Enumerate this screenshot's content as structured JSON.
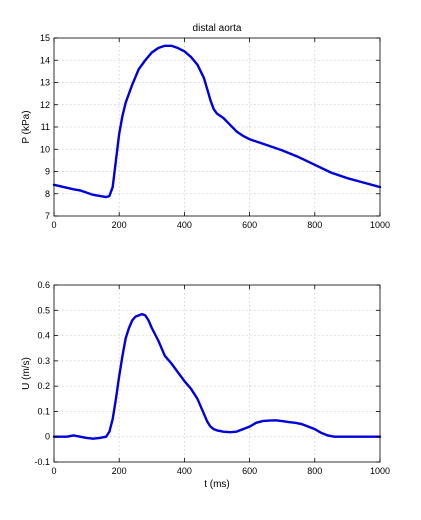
{
  "chart_data": [
    {
      "type": "line",
      "title": "distal aorta",
      "xlabel": "",
      "ylabel": "P  (kPa)",
      "xlim": [
        0,
        1000
      ],
      "ylim": [
        7,
        15
      ],
      "xticks": [
        0,
        200,
        400,
        600,
        800,
        1000
      ],
      "yticks": [
        7,
        8,
        9,
        10,
        11,
        12,
        13,
        14,
        15
      ],
      "grid": true,
      "color": "#0000dd",
      "series": [
        {
          "x": [
            0,
            30,
            60,
            80,
            100,
            120,
            140,
            160,
            170,
            180,
            190,
            200,
            210,
            220,
            240,
            260,
            280,
            300,
            320,
            340,
            360,
            380,
            400,
            420,
            440,
            460,
            470,
            480,
            490,
            500,
            520,
            540,
            560,
            580,
            600,
            650,
            700,
            750,
            800,
            850,
            900,
            950,
            1000
          ],
          "y": [
            8.4,
            8.3,
            8.2,
            8.15,
            8.05,
            7.95,
            7.9,
            7.85,
            7.9,
            8.3,
            9.5,
            10.7,
            11.5,
            12.1,
            12.9,
            13.6,
            14.0,
            14.35,
            14.55,
            14.65,
            14.65,
            14.55,
            14.4,
            14.15,
            13.8,
            13.2,
            12.7,
            12.2,
            11.8,
            11.6,
            11.4,
            11.1,
            10.8,
            10.6,
            10.45,
            10.2,
            9.95,
            9.65,
            9.3,
            8.95,
            8.7,
            8.5,
            8.3
          ]
        }
      ]
    },
    {
      "type": "line",
      "title": "",
      "xlabel": "t  (ms)",
      "ylabel": "U  (m/s)",
      "xlim": [
        0,
        1000
      ],
      "ylim": [
        -0.1,
        0.6
      ],
      "xticks": [
        0,
        200,
        400,
        600,
        800,
        1000
      ],
      "yticks": [
        -0.1,
        0,
        0.1,
        0.2,
        0.3,
        0.4,
        0.5,
        0.6
      ],
      "grid": true,
      "color": "#0000dd",
      "series": [
        {
          "x": [
            0,
            20,
            40,
            60,
            80,
            100,
            120,
            140,
            160,
            170,
            180,
            190,
            200,
            210,
            220,
            230,
            240,
            250,
            260,
            270,
            280,
            290,
            300,
            320,
            340,
            360,
            380,
            400,
            420,
            440,
            460,
            470,
            480,
            490,
            500,
            520,
            540,
            560,
            580,
            600,
            620,
            640,
            660,
            680,
            700,
            720,
            740,
            760,
            780,
            800,
            820,
            840,
            860,
            900,
            950,
            1000
          ],
          "y": [
            0.0,
            0.0,
            0.0,
            0.005,
            0.0,
            -0.005,
            -0.008,
            -0.005,
            0.0,
            0.02,
            0.07,
            0.15,
            0.24,
            0.32,
            0.39,
            0.43,
            0.46,
            0.475,
            0.48,
            0.485,
            0.48,
            0.46,
            0.43,
            0.38,
            0.32,
            0.29,
            0.255,
            0.22,
            0.19,
            0.15,
            0.09,
            0.06,
            0.04,
            0.03,
            0.025,
            0.02,
            0.018,
            0.02,
            0.03,
            0.04,
            0.055,
            0.062,
            0.064,
            0.065,
            0.062,
            0.058,
            0.055,
            0.05,
            0.04,
            0.03,
            0.015,
            0.005,
            0.0,
            0.0,
            0.0,
            0.0
          ]
        }
      ]
    }
  ]
}
